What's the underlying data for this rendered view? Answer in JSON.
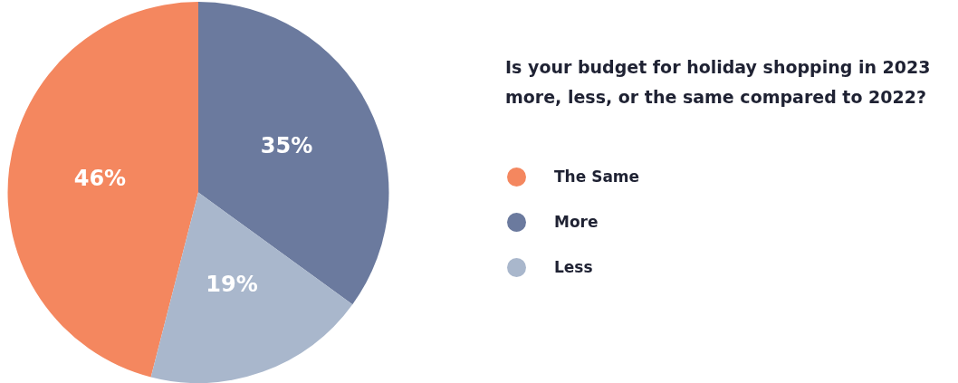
{
  "chart_data": {
    "type": "pie",
    "title": "Is your budget for holiday shopping in 2023 more, less, or the same compared to 2022?",
    "categories": [
      "The Same",
      "More",
      "Less"
    ],
    "values": [
      46,
      35,
      19
    ],
    "colors": [
      "#f4875f",
      "#6b7a9e",
      "#a9b7cc"
    ],
    "value_labels": [
      "46%",
      "35%",
      "19%"
    ],
    "legend": "right"
  }
}
